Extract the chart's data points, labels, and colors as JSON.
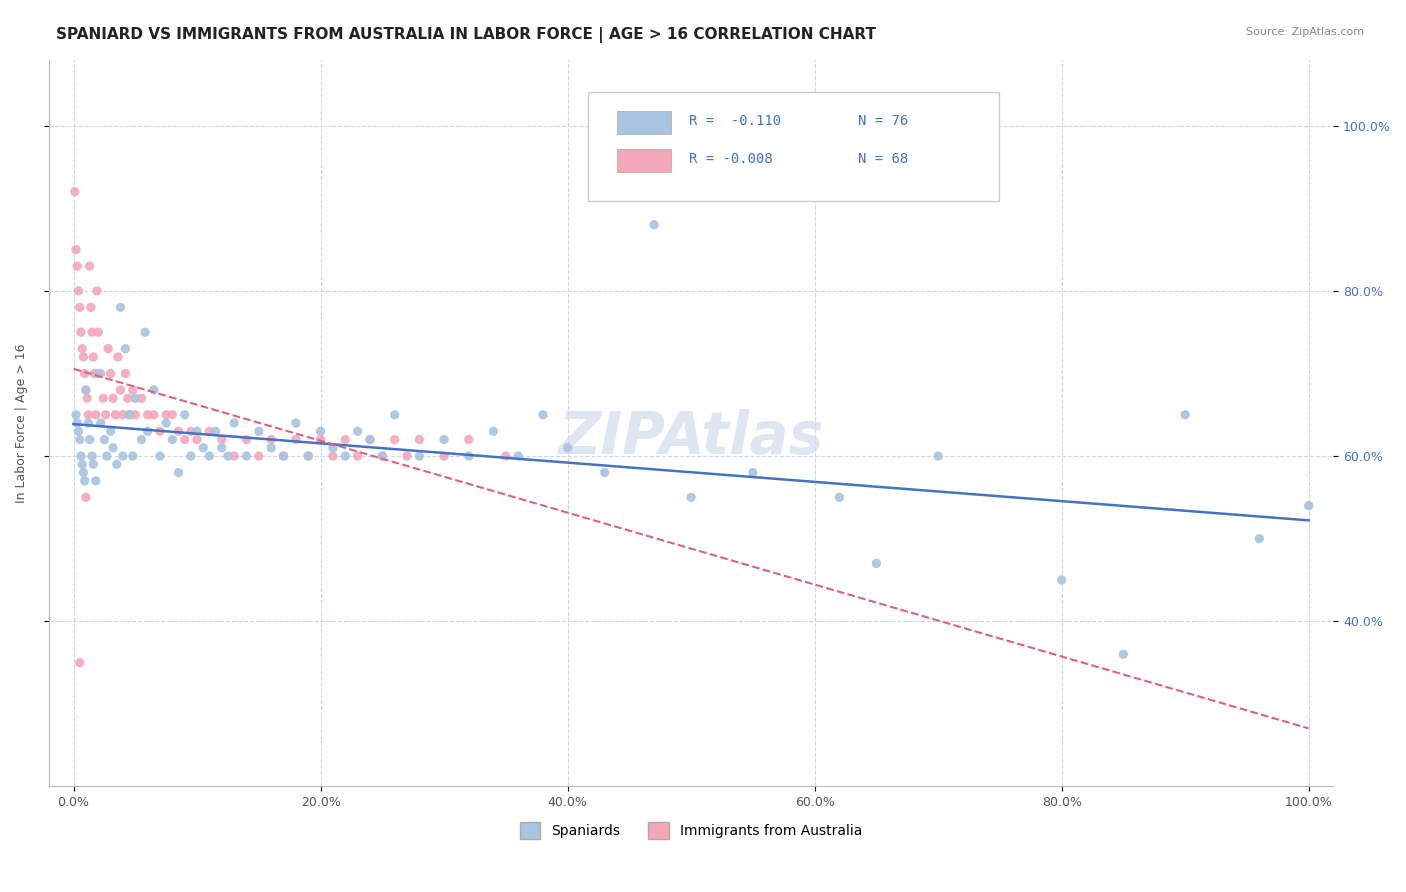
{
  "title": "SPANIARD VS IMMIGRANTS FROM AUSTRALIA IN LABOR FORCE | AGE > 16 CORRELATION CHART",
  "source": "Source: ZipAtlas.com",
  "ylabel": "In Labor Force | Age > 16",
  "xlim": [
    -0.02,
    1.02
  ],
  "ylim": [
    0.2,
    1.08
  ],
  "legend_r1": "R =  -0.110",
  "legend_n1": "N = 76",
  "legend_r2": "R = -0.008",
  "legend_n2": "N = 68",
  "spaniards_color": "#a8c4e0",
  "immigrants_color": "#f4a7b9",
  "trendline_spaniards_color": "#4472c4",
  "trendline_immigrants_color": "#e06080",
  "background_color": "#ffffff",
  "grid_color": "#c8d8e8",
  "spaniards_x": [
    0.002,
    0.003,
    0.004,
    0.005,
    0.006,
    0.007,
    0.008,
    0.009,
    0.01,
    0.012,
    0.013,
    0.015,
    0.016,
    0.018,
    0.02,
    0.022,
    0.025,
    0.027,
    0.03,
    0.032,
    0.035,
    0.038,
    0.04,
    0.042,
    0.045,
    0.048,
    0.05,
    0.055,
    0.058,
    0.06,
    0.065,
    0.07,
    0.075,
    0.08,
    0.085,
    0.09,
    0.095,
    0.1,
    0.105,
    0.11,
    0.115,
    0.12,
    0.125,
    0.13,
    0.14,
    0.15,
    0.16,
    0.17,
    0.18,
    0.19,
    0.2,
    0.21,
    0.22,
    0.23,
    0.24,
    0.25,
    0.26,
    0.28,
    0.3,
    0.32,
    0.34,
    0.36,
    0.38,
    0.4,
    0.43,
    0.47,
    0.5,
    0.55,
    0.62,
    0.65,
    0.7,
    0.8,
    0.85,
    0.9,
    0.96,
    1.0
  ],
  "spaniards_y": [
    0.65,
    0.64,
    0.63,
    0.62,
    0.6,
    0.59,
    0.58,
    0.57,
    0.68,
    0.64,
    0.62,
    0.6,
    0.59,
    0.57,
    0.7,
    0.64,
    0.62,
    0.6,
    0.63,
    0.61,
    0.59,
    0.78,
    0.6,
    0.73,
    0.65,
    0.6,
    0.67,
    0.62,
    0.75,
    0.63,
    0.68,
    0.6,
    0.64,
    0.62,
    0.58,
    0.65,
    0.6,
    0.63,
    0.61,
    0.6,
    0.63,
    0.61,
    0.6,
    0.64,
    0.6,
    0.63,
    0.61,
    0.6,
    0.64,
    0.6,
    0.63,
    0.61,
    0.6,
    0.63,
    0.62,
    0.6,
    0.65,
    0.6,
    0.62,
    0.6,
    0.63,
    0.6,
    0.65,
    0.61,
    0.58,
    0.88,
    0.55,
    0.58,
    0.55,
    0.47,
    0.6,
    0.45,
    0.36,
    0.65,
    0.5,
    0.54
  ],
  "immigrants_x": [
    0.001,
    0.002,
    0.003,
    0.004,
    0.005,
    0.006,
    0.007,
    0.008,
    0.009,
    0.01,
    0.011,
    0.012,
    0.013,
    0.014,
    0.015,
    0.016,
    0.017,
    0.018,
    0.019,
    0.02,
    0.022,
    0.024,
    0.026,
    0.028,
    0.03,
    0.032,
    0.034,
    0.036,
    0.038,
    0.04,
    0.042,
    0.044,
    0.046,
    0.048,
    0.05,
    0.055,
    0.06,
    0.065,
    0.07,
    0.075,
    0.08,
    0.085,
    0.09,
    0.095,
    0.1,
    0.11,
    0.12,
    0.13,
    0.14,
    0.15,
    0.16,
    0.17,
    0.18,
    0.19,
    0.2,
    0.21,
    0.22,
    0.23,
    0.24,
    0.25,
    0.26,
    0.27,
    0.28,
    0.3,
    0.32,
    0.35,
    0.01,
    0.005
  ],
  "immigrants_y": [
    0.92,
    0.85,
    0.83,
    0.8,
    0.78,
    0.75,
    0.73,
    0.72,
    0.7,
    0.68,
    0.67,
    0.65,
    0.83,
    0.78,
    0.75,
    0.72,
    0.7,
    0.65,
    0.8,
    0.75,
    0.7,
    0.67,
    0.65,
    0.73,
    0.7,
    0.67,
    0.65,
    0.72,
    0.68,
    0.65,
    0.7,
    0.67,
    0.65,
    0.68,
    0.65,
    0.67,
    0.65,
    0.65,
    0.63,
    0.65,
    0.65,
    0.63,
    0.62,
    0.63,
    0.62,
    0.63,
    0.62,
    0.6,
    0.62,
    0.6,
    0.62,
    0.6,
    0.62,
    0.6,
    0.62,
    0.6,
    0.62,
    0.6,
    0.62,
    0.6,
    0.62,
    0.6,
    0.62,
    0.6,
    0.62,
    0.6,
    0.55,
    0.35
  ]
}
